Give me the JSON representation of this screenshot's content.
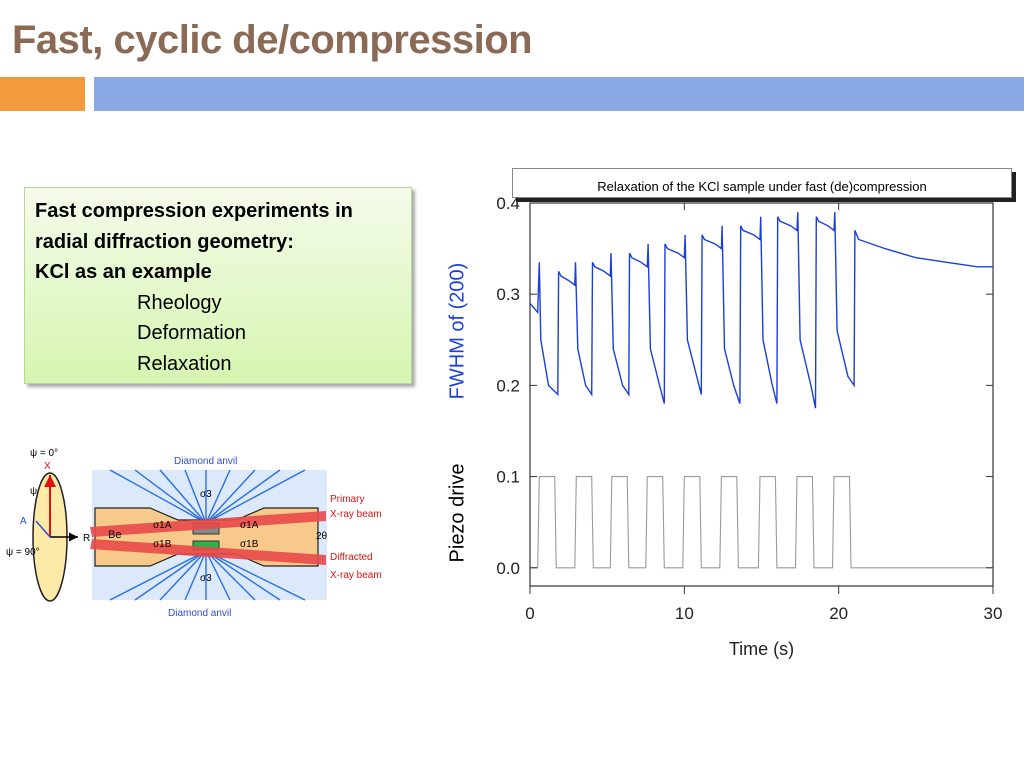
{
  "slide": {
    "title": "Fast, cyclic de/compression",
    "textbox": {
      "line1": "Fast compression experiments  in radial diffraction geometry:",
      "line2": "KCl as an example",
      "items": [
        "Rheology",
        "Deformation",
        "Relaxation"
      ]
    },
    "caption": "Relaxation of the KCl sample under fast (de)compression"
  },
  "colors": {
    "title": "#8b6a55",
    "accent_orange": "#f59a3c",
    "accent_blue": "#8aaae6",
    "fwhm_series": "#1a3ee0",
    "piezo_series": "#9a9a9a"
  },
  "chart_data": {
    "type": "line",
    "xlabel": "Time (s)",
    "xlim": [
      0,
      30
    ],
    "ylim": [
      -0.02,
      0.4
    ],
    "x_ticks": [
      "0",
      "10",
      "20",
      "30"
    ],
    "y_ticks": [
      "0.0",
      "0.1",
      "0.2",
      "0.3",
      "0.4"
    ],
    "y_tick_values": [
      0.0,
      0.1,
      0.2,
      0.3,
      0.4
    ],
    "x_tick_values": [
      0,
      10,
      20,
      30
    ],
    "series": [
      {
        "name": "FWHM of (200)",
        "color": "#1a3ee0",
        "x": [
          0,
          0.5,
          0.6,
          0.7,
          1.2,
          1.8,
          1.85,
          2.0,
          2.5,
          2.9,
          2.95,
          3.1,
          3.6,
          4.0,
          4.05,
          4.2,
          4.8,
          5.2,
          5.25,
          5.4,
          6.0,
          6.4,
          6.45,
          6.6,
          7.2,
          7.6,
          7.65,
          7.8,
          8.4,
          8.7,
          8.75,
          8.9,
          9.6,
          10.0,
          10.05,
          10.2,
          10.8,
          11.1,
          11.15,
          11.3,
          12.0,
          12.4,
          12.45,
          12.6,
          13.2,
          13.6,
          13.65,
          13.8,
          14.5,
          14.9,
          14.95,
          15.1,
          15.7,
          16.0,
          16.05,
          16.2,
          16.9,
          17.3,
          17.35,
          17.5,
          18.2,
          18.5,
          18.55,
          18.7,
          19.3,
          19.7,
          19.75,
          19.9,
          20.6,
          21.0,
          21.05,
          21.3,
          23,
          25,
          27,
          29,
          30
        ],
        "y": [
          0.29,
          0.28,
          0.335,
          0.25,
          0.2,
          0.19,
          0.325,
          0.32,
          0.315,
          0.31,
          0.335,
          0.24,
          0.2,
          0.19,
          0.335,
          0.33,
          0.325,
          0.32,
          0.345,
          0.24,
          0.2,
          0.19,
          0.345,
          0.34,
          0.335,
          0.33,
          0.355,
          0.24,
          0.2,
          0.18,
          0.355,
          0.35,
          0.345,
          0.34,
          0.365,
          0.25,
          0.21,
          0.19,
          0.365,
          0.36,
          0.355,
          0.35,
          0.375,
          0.24,
          0.2,
          0.18,
          0.375,
          0.37,
          0.365,
          0.36,
          0.385,
          0.25,
          0.2,
          0.18,
          0.385,
          0.38,
          0.375,
          0.37,
          0.39,
          0.25,
          0.2,
          0.175,
          0.385,
          0.38,
          0.375,
          0.37,
          0.39,
          0.26,
          0.21,
          0.2,
          0.37,
          0.36,
          0.35,
          0.34,
          0.335,
          0.33,
          0.33
        ]
      },
      {
        "name": "Piezo drive",
        "color": "#9a9a9a",
        "x": [
          0,
          0.5,
          0.6,
          1.6,
          1.7,
          2.9,
          3.0,
          4.0,
          4.1,
          5.2,
          5.3,
          6.3,
          6.4,
          7.5,
          7.6,
          8.6,
          8.7,
          9.9,
          10.0,
          11.0,
          11.1,
          12.3,
          12.4,
          13.4,
          13.5,
          14.8,
          14.9,
          15.9,
          16.0,
          17.2,
          17.3,
          18.3,
          18.4,
          19.6,
          19.7,
          20.7,
          20.8,
          30
        ],
        "y": [
          0,
          0,
          0.1,
          0.1,
          0,
          0,
          0.1,
          0.1,
          0,
          0,
          0.1,
          0.1,
          0,
          0,
          0.1,
          0.1,
          0,
          0,
          0.1,
          0.1,
          0,
          0,
          0.1,
          0.1,
          0,
          0,
          0.1,
          0.1,
          0,
          0,
          0.1,
          0.1,
          0,
          0,
          0.1,
          0.1,
          0,
          0
        ]
      }
    ],
    "y_axis_labels": {
      "upper": "FWHM of (200)",
      "lower": "Piezo drive"
    }
  },
  "diagram": {
    "psi0": "ψ = 0°",
    "x": "X",
    "psi": "ψ",
    "a": "A",
    "r": "R",
    "psi90": "ψ = 90°",
    "anvil_top": "Diamond anvil",
    "anvil_bottom": "Diamond anvil",
    "be": "Be",
    "sigma3_top": "σ3",
    "sigma3_bottom": "σ3",
    "sigma1a_l": "σ1A",
    "sigma1b_l": "σ1B",
    "sigma1a_r": "σ1A",
    "sigma1b_r": "σ1B",
    "two_theta": "2θ",
    "primary_1": "Primary",
    "primary_2": "X-ray beam",
    "diffracted_1": "Diffracted",
    "diffracted_2": "X-ray beam"
  }
}
